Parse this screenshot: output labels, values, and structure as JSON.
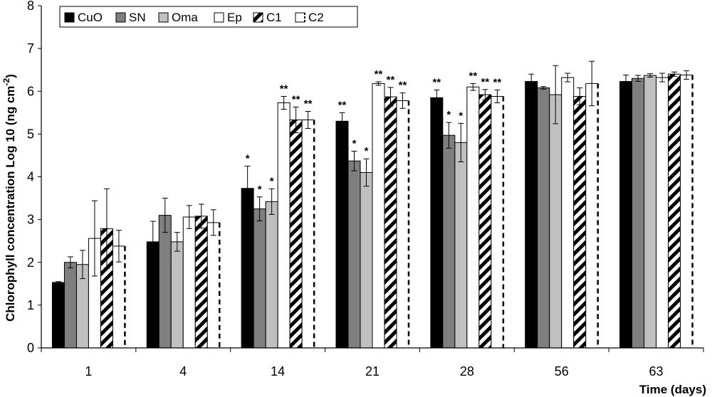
{
  "chart_data": {
    "type": "bar",
    "title": "",
    "ylabel": "Chlorophyll concentration Log 10 (ng cm",
    "ylabel_sup": "-2",
    "ylabel_close": ")",
    "xlabel": "Time (days)",
    "ylim": [
      0,
      8
    ],
    "yticks": [
      "0",
      "1",
      "2",
      "3",
      "4",
      "5",
      "6",
      "7",
      "8"
    ],
    "categories": [
      "1",
      "4",
      "14",
      "21",
      "28",
      "56",
      "63"
    ],
    "legend_position": "top-left",
    "series": [
      {
        "name": "CuO",
        "fill": "#000000",
        "pattern": "solid",
        "values": [
          1.53,
          2.48,
          3.73,
          5.3,
          5.85,
          6.23,
          6.23
        ],
        "errors": [
          0.02,
          0.48,
          0.52,
          0.2,
          0.18,
          0.17,
          0.15
        ],
        "sig": [
          "",
          "",
          "*",
          "**",
          "**",
          "",
          ""
        ]
      },
      {
        "name": "SN",
        "fill": "#7f7f7f",
        "pattern": "solid",
        "values": [
          2.0,
          3.1,
          3.25,
          4.37,
          4.97,
          6.08,
          6.3
        ],
        "errors": [
          0.13,
          0.4,
          0.28,
          0.23,
          0.3,
          0.03,
          0.07
        ],
        "sig": [
          "",
          "",
          "*",
          "*",
          "*",
          "",
          ""
        ]
      },
      {
        "name": "Oma",
        "fill": "#c0c0c0",
        "pattern": "solid",
        "values": [
          1.95,
          2.48,
          3.42,
          4.1,
          4.8,
          5.92,
          6.37
        ],
        "errors": [
          0.33,
          0.22,
          0.3,
          0.32,
          0.45,
          0.68,
          0.04
        ],
        "sig": [
          "",
          "",
          "*",
          "*",
          "*",
          "",
          ""
        ]
      },
      {
        "name": "Ep",
        "fill": "#ffffff",
        "pattern": "solid",
        "values": [
          2.56,
          3.06,
          5.73,
          6.18,
          6.1,
          6.32,
          6.32
        ],
        "errors": [
          0.88,
          0.27,
          0.15,
          0.04,
          0.08,
          0.1,
          0.1
        ],
        "sig": [
          "",
          "",
          "**",
          "**",
          "**",
          "",
          ""
        ]
      },
      {
        "name": "C1",
        "fill": "#ffffff",
        "pattern": "diagonal",
        "values": [
          2.79,
          3.08,
          5.33,
          5.87,
          5.92,
          5.88,
          6.4
        ],
        "errors": [
          0.93,
          0.28,
          0.3,
          0.22,
          0.12,
          0.2,
          0.05
        ],
        "sig": [
          "",
          "",
          "**",
          "**",
          "**",
          "",
          ""
        ]
      },
      {
        "name": "C2",
        "fill": "#ffffff",
        "pattern": "dashed",
        "values": [
          2.38,
          2.93,
          5.33,
          5.78,
          5.88,
          6.18,
          6.38
        ],
        "errors": [
          0.37,
          0.3,
          0.2,
          0.18,
          0.15,
          0.52,
          0.1
        ],
        "sig": [
          "",
          "",
          "**",
          "**",
          "**",
          "",
          ""
        ]
      }
    ]
  }
}
